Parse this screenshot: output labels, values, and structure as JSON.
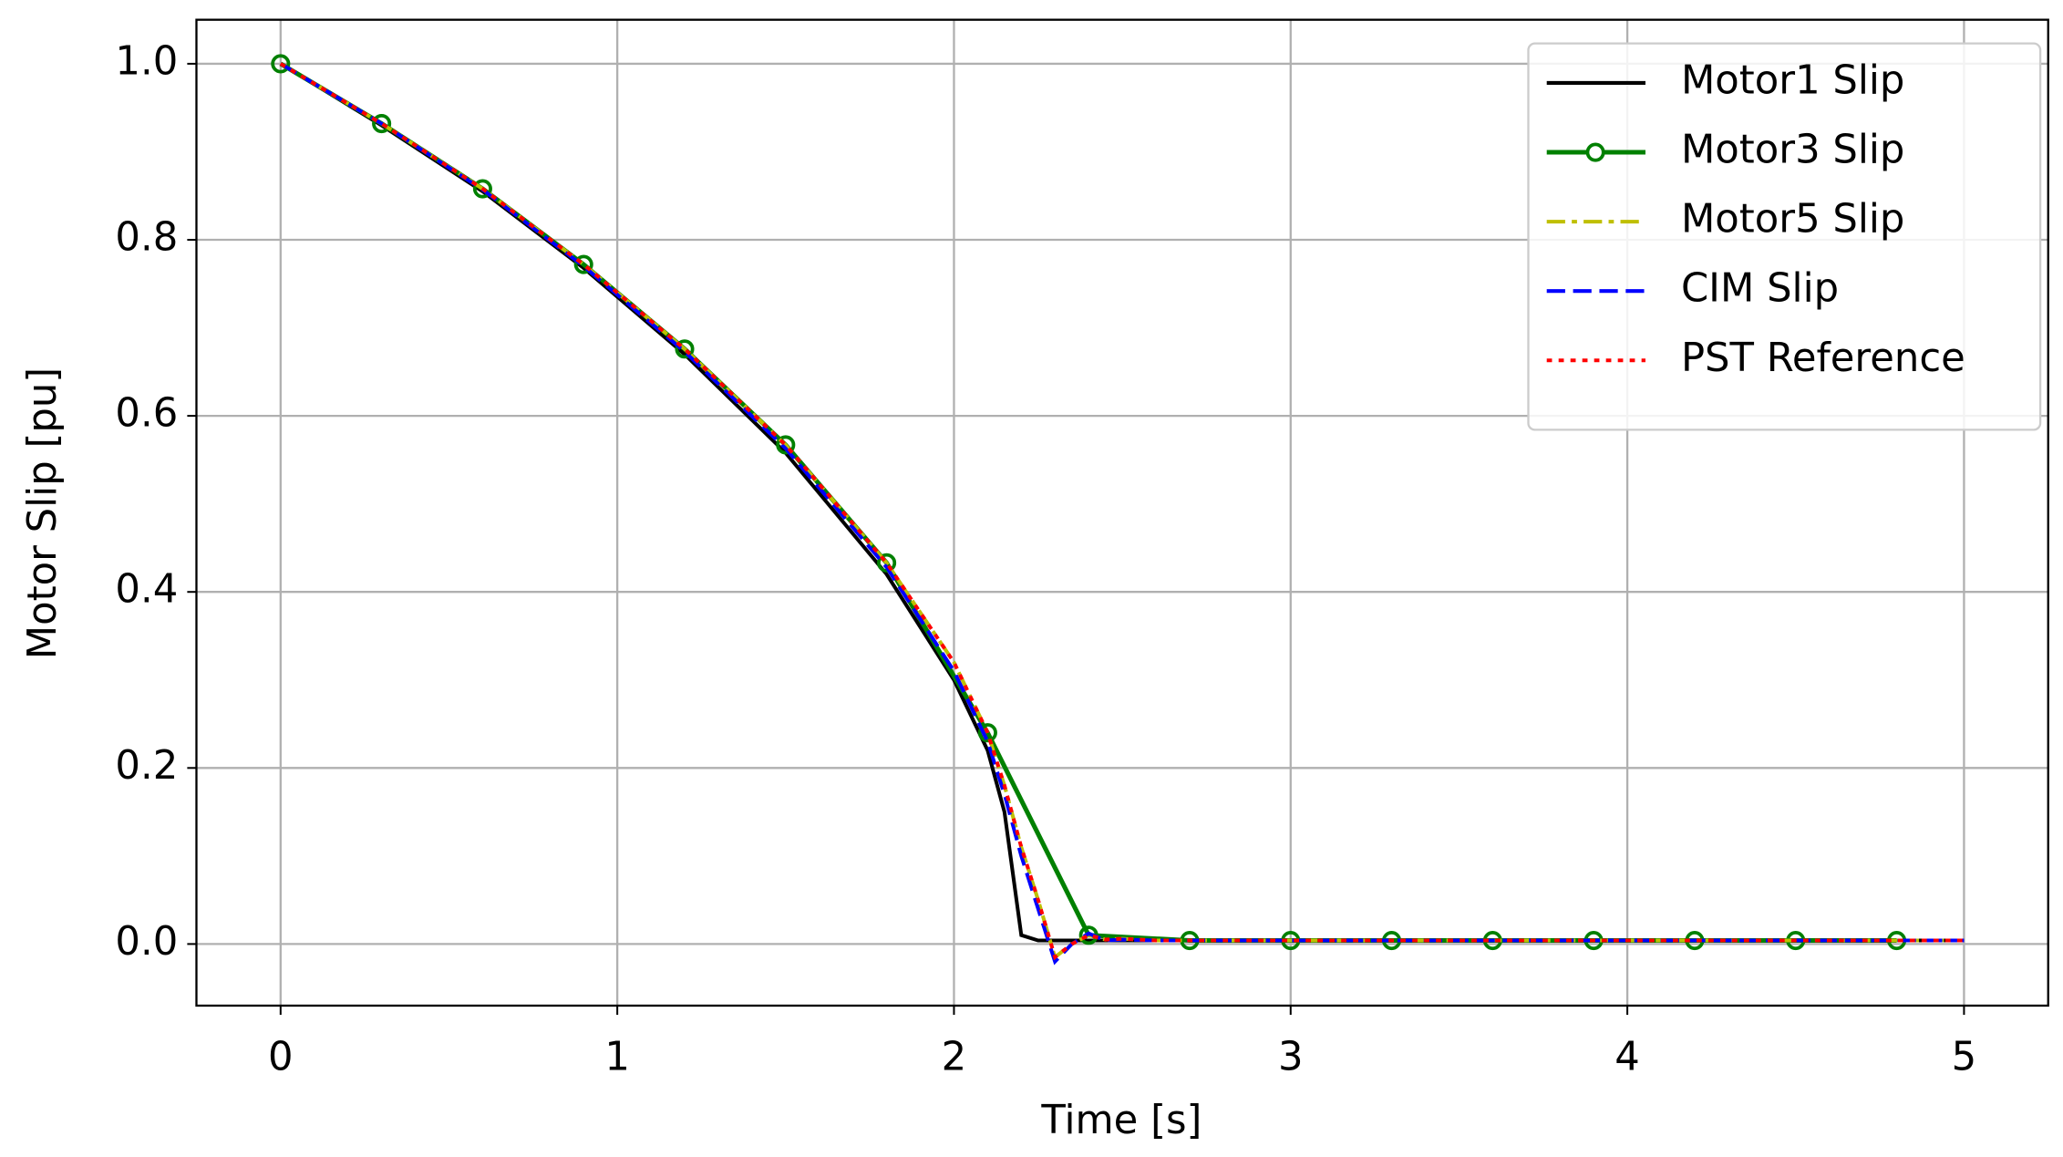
{
  "chart_data": {
    "type": "line",
    "xlabel": "Time [s]",
    "ylabel": "Motor Slip [pu]",
    "xlim": [
      -0.25,
      5.25
    ],
    "ylim": [
      -0.07,
      1.05
    ],
    "xticks": [
      0,
      1,
      2,
      3,
      4,
      5
    ],
    "yticks": [
      {
        "value": 0,
        "label": "0.0"
      },
      {
        "value": 0.2,
        "label": "0.2"
      },
      {
        "value": 0.4,
        "label": "0.4"
      },
      {
        "value": 0.6,
        "label": "0.6"
      },
      {
        "value": 0.8,
        "label": "0.8"
      },
      {
        "value": 1,
        "label": "1.0"
      }
    ],
    "grid": true,
    "legend": "upper right",
    "series": [
      {
        "name": "Motor1 Slip",
        "color": "#000000",
        "style": "solid",
        "x": [
          0,
          0.3,
          0.6,
          0.9,
          1.2,
          1.5,
          1.8,
          2.0,
          2.1,
          2.15,
          2.2,
          2.25,
          2.3,
          2.35,
          2.4,
          2.45,
          2.5,
          2.6,
          2.7,
          3,
          3.5,
          4,
          4.5,
          5
        ],
        "values": [
          1,
          0.93,
          0.855,
          0.768,
          0.67,
          0.558,
          0.42,
          0.3,
          0.22,
          0.15,
          0.01,
          0.004,
          0.004,
          0.004,
          0.004,
          0.004,
          0.004,
          0.004,
          0.004,
          0.004,
          0.004,
          0.004,
          0.004,
          0.004
        ]
      },
      {
        "name": "Motor3 Slip",
        "color": "#008000",
        "style": "solid",
        "marker": "o",
        "x": [
          0,
          0.3,
          0.6,
          0.9,
          1.2,
          1.5,
          1.8,
          2.1,
          2.4,
          2.7,
          3.0,
          3.3,
          3.6,
          3.9,
          4.2,
          4.5,
          4.8
        ],
        "values": [
          1,
          0.932,
          0.858,
          0.772,
          0.676,
          0.567,
          0.433,
          0.24,
          0.01,
          0.004,
          0.004,
          0.004,
          0.004,
          0.004,
          0.004,
          0.004,
          0.004
        ]
      },
      {
        "name": "Motor5 Slip",
        "color": "#bfbf00",
        "style": "dashdot",
        "x": [
          0,
          0.3,
          0.6,
          0.9,
          1.2,
          1.5,
          1.8,
          2.0,
          2.1,
          2.15,
          2.2,
          2.25,
          2.3,
          2.35,
          2.4,
          2.45,
          2.5,
          2.6,
          2.7,
          3,
          3.5,
          4,
          4.5,
          5
        ],
        "values": [
          1,
          0.932,
          0.858,
          0.772,
          0.676,
          0.567,
          0.433,
          0.32,
          0.24,
          0.18,
          0.11,
          0.05,
          -0.015,
          0.0,
          0.01,
          0.005,
          0.006,
          0.004,
          0.004,
          0.004,
          0.004,
          0.004,
          0.004,
          0.004
        ]
      },
      {
        "name": "CIM Slip",
        "color": "#0000ff",
        "style": "dashed",
        "x": [
          0,
          0.3,
          0.6,
          0.9,
          1.2,
          1.5,
          1.8,
          2.0,
          2.1,
          2.15,
          2.2,
          2.25,
          2.3,
          2.35,
          2.4,
          2.45,
          2.5,
          2.6,
          2.7,
          3,
          3.5,
          4,
          4.5,
          5
        ],
        "values": [
          1,
          0.932,
          0.857,
          0.77,
          0.673,
          0.563,
          0.428,
          0.31,
          0.23,
          0.17,
          0.1,
          0.04,
          -0.02,
          0.0,
          0.012,
          0.004,
          0.005,
          0.004,
          0.004,
          0.004,
          0.004,
          0.004,
          0.004,
          0.004
        ]
      },
      {
        "name": "PST Reference",
        "color": "#ff0000",
        "style": "dotted",
        "x": [
          0,
          0.3,
          0.6,
          0.9,
          1.2,
          1.5,
          1.8,
          2.0,
          2.1,
          2.15,
          2.2,
          2.25,
          2.3,
          2.35,
          2.4,
          2.45,
          2.5,
          2.6,
          2.7,
          3,
          3.5,
          4,
          4.5,
          5
        ],
        "values": [
          1,
          0.932,
          0.858,
          0.772,
          0.676,
          0.567,
          0.433,
          0.32,
          0.24,
          0.18,
          0.11,
          0.05,
          -0.015,
          0.0,
          0.01,
          0.005,
          0.006,
          0.004,
          0.004,
          0.004,
          0.004,
          0.004,
          0.004,
          0.004
        ]
      }
    ]
  }
}
